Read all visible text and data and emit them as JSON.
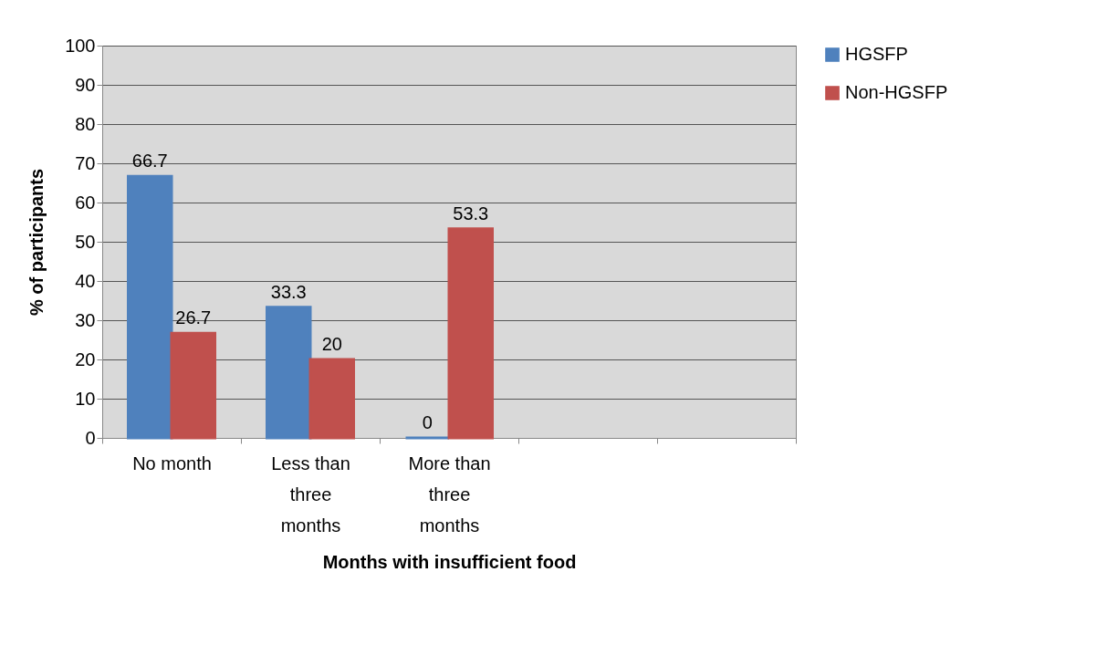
{
  "chart_data": {
    "type": "bar",
    "xlabel": "Months with insufficient food",
    "ylabel": "% of participants",
    "categories": [
      "No month",
      "Less than three months",
      "More than three months",
      null,
      null
    ],
    "series": [
      {
        "name": "HGSFP",
        "color": "#4f81bd",
        "values": [
          66.7,
          33.3,
          0,
          null,
          null
        ]
      },
      {
        "name": "Non-HGSFP",
        "color": "#c0504d",
        "values": [
          26.7,
          20,
          53.3,
          null,
          null
        ]
      }
    ],
    "ylim": [
      0,
      100
    ],
    "yticks": [
      0,
      10,
      20,
      30,
      40,
      50,
      60,
      70,
      80,
      90,
      100
    ],
    "grid": "y",
    "legend": "right",
    "data_labels": true
  }
}
